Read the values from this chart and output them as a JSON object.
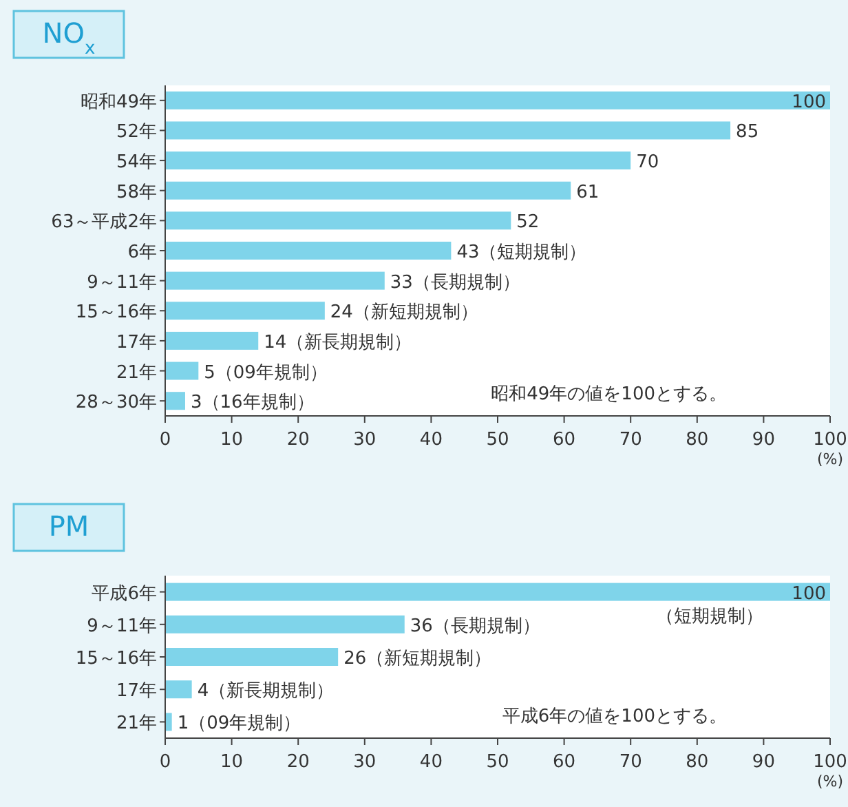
{
  "chart_data": [
    {
      "type": "bar",
      "orientation": "horizontal",
      "title": "NO$_{x}$",
      "xlabel": "(%)",
      "color": "#7fd4ea",
      "grid": false,
      "xlim": [
        0,
        100
      ],
      "xticks": [
        0,
        10,
        20,
        30,
        40,
        50,
        60,
        70,
        80,
        90,
        100
      ],
      "categories": [
        "昭和49年",
        "52年",
        "54年",
        "58年",
        "63～平成2年",
        "6年",
        "9～11年",
        "15～16年",
        "17年",
        "21年",
        "28～30年"
      ],
      "values": [
        100,
        85,
        70,
        61,
        52,
        43,
        33,
        24,
        14,
        5,
        3
      ],
      "value_labels": [
        "100",
        "85",
        "70",
        "61",
        "52",
        "43（短期規制）",
        "33（長期規制）",
        "24（新短期規制）",
        "14（新長期規制）",
        "5（09年規制）",
        "3（16年規制）"
      ],
      "annotations": [
        "昭和49年の値を100とする。"
      ]
    },
    {
      "type": "bar",
      "orientation": "horizontal",
      "title": "PM",
      "xlabel": "(%)",
      "color": "#7fd4ea",
      "grid": false,
      "xlim": [
        0,
        100
      ],
      "xticks": [
        0,
        10,
        20,
        30,
        40,
        50,
        60,
        70,
        80,
        90,
        100
      ],
      "categories": [
        "平成6年",
        "9～11年",
        "15～16年",
        "17年",
        "21年"
      ],
      "values": [
        100,
        36,
        26,
        4,
        1
      ],
      "value_labels": [
        "100",
        "36（長期規制）",
        "26（新短期規制）",
        "4（新長期規制）",
        "1（09年規制）"
      ],
      "annotations": [
        {
          "text": "（短期規制）",
          "x": 90,
          "y": "平成6年"
        },
        "平成6年の値を100とする。"
      ]
    }
  ]
}
